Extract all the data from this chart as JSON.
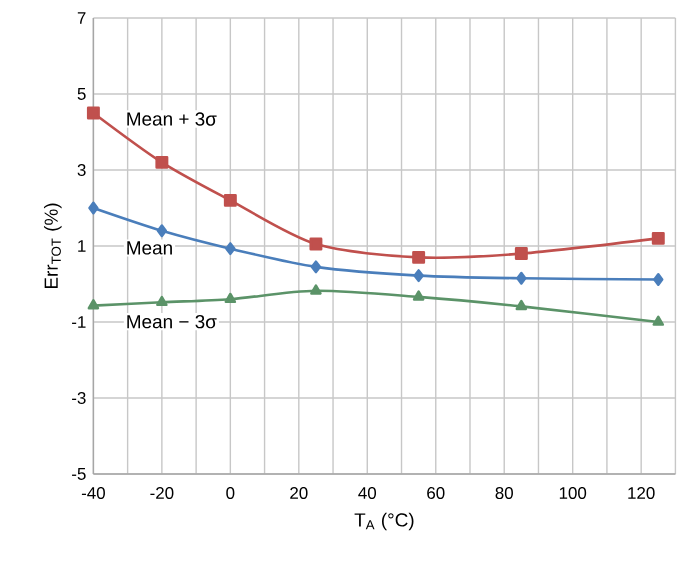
{
  "chart_data": {
    "type": "line",
    "xlabel": "T$_{A}$ (°C)",
    "ylabel": "Err$_{TOT}$ (%)",
    "x": [
      -40,
      -20,
      0,
      25,
      55,
      85,
      125
    ],
    "series": [
      {
        "name": "Mean + 3σ",
        "color": "#c0504d",
        "marker": "square",
        "values": [
          4.5,
          3.2,
          2.2,
          1.05,
          0.7,
          0.8,
          1.2
        ]
      },
      {
        "name": "Mean",
        "color": "#4a7ebb",
        "marker": "diamond",
        "values": [
          2.0,
          1.4,
          0.93,
          0.45,
          0.22,
          0.15,
          0.12
        ]
      },
      {
        "name": "Mean − 3σ",
        "color": "#5b9368",
        "marker": "triangle",
        "values": [
          -0.57,
          -0.48,
          -0.4,
          -0.18,
          -0.34,
          -0.59,
          -1.0
        ]
      }
    ],
    "xlim": [
      -40,
      130
    ],
    "xticks": [
      -40,
      {
        "value": -30,
        "label": null
      },
      -20,
      {
        "value": -10,
        "label": null
      },
      0,
      {
        "value": 10,
        "label": null
      },
      20,
      {
        "value": 30,
        "label": null
      },
      40,
      {
        "value": 50,
        "label": null
      },
      60,
      {
        "value": 70,
        "label": null
      },
      80,
      {
        "value": 90,
        "label": null
      },
      100,
      {
        "value": 110,
        "label": null
      },
      120,
      {
        "value": 130,
        "label": null
      }
    ],
    "ylim": [
      -5,
      7
    ],
    "yticks": [
      -5,
      -3,
      -1,
      1,
      3,
      5,
      7
    ],
    "grid": true,
    "line_style": "solid"
  }
}
